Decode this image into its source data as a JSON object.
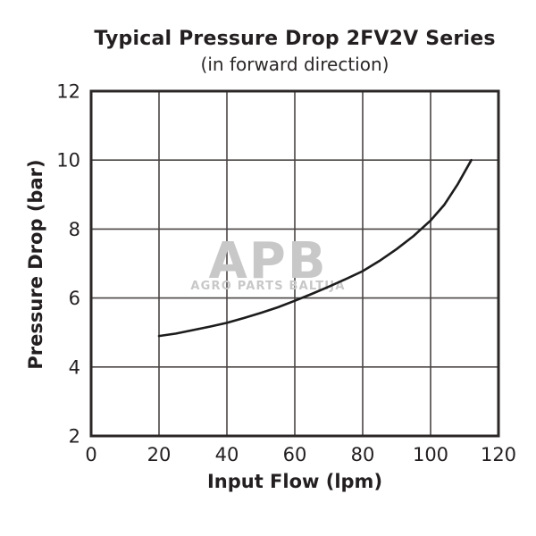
{
  "chart_data": {
    "type": "line",
    "title": "Typical Pressure Drop 2FV2V Series",
    "subtitle": "(in forward direction)",
    "xlabel": "Input Flow (lpm)",
    "ylabel": "Pressure Drop (bar)",
    "xlim": [
      0,
      120
    ],
    "ylim": [
      2,
      12
    ],
    "x_ticks": [
      0,
      20,
      40,
      60,
      80,
      100,
      120
    ],
    "y_ticks": [
      2,
      4,
      6,
      8,
      10,
      12
    ],
    "grid": true,
    "legend": "none",
    "series": [
      {
        "name": "pressure-drop-forward-direction",
        "x": [
          20,
          25,
          30,
          35,
          40,
          45,
          50,
          55,
          60,
          65,
          70,
          75,
          80,
          85,
          90,
          95,
          100,
          104,
          108,
          112
        ],
        "y": [
          4.9,
          4.97,
          5.07,
          5.17,
          5.28,
          5.42,
          5.57,
          5.73,
          5.92,
          6.12,
          6.33,
          6.55,
          6.78,
          7.08,
          7.42,
          7.8,
          8.25,
          8.7,
          9.3,
          10.0
        ]
      }
    ]
  },
  "watermark": {
    "logo": "APB",
    "caption": "AGRO PARTS BALTIJA"
  },
  "colors": {
    "text": "#231f20",
    "grid_line": "#4a4545",
    "plot_border": "#2b2727",
    "curve": "#1c1c1c",
    "watermark": "#c8c8c8",
    "background": "#ffffff"
  }
}
